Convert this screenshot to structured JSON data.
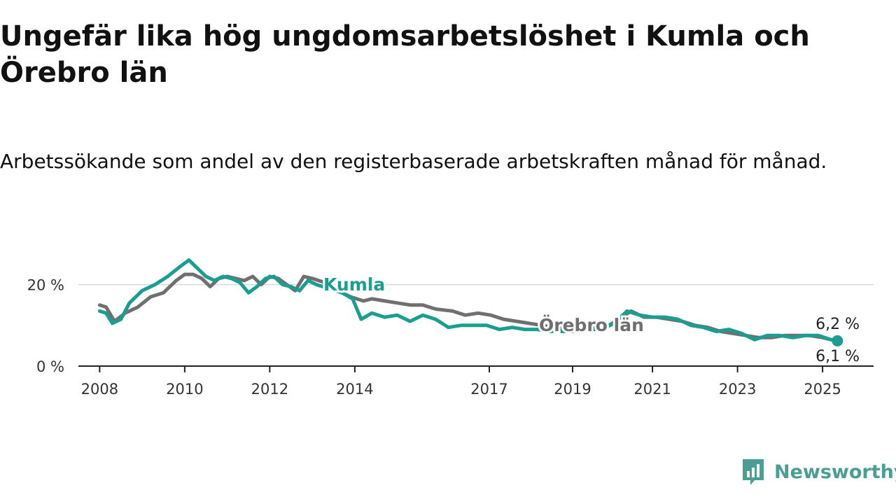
{
  "title": "Ungefär lika hög ungdomsarbetslöshet i Kumla och Örebro län",
  "subtitle": "Arbetssökande som andel av den registerbaserade arbetskraften månad för månad.",
  "brand": {
    "name": "Newsworthy",
    "icon": "bar-chart-speech-icon",
    "color": "#4a9e94"
  },
  "chart_data": {
    "type": "line",
    "xlim": [
      2007.5,
      2026.2
    ],
    "ylim": [
      0,
      28
    ],
    "x_ticks": [
      2008,
      2010,
      2012,
      2014,
      2017,
      2019,
      2021,
      2023,
      2025
    ],
    "y_ticks": [
      {
        "value": 0,
        "label": "0 %"
      },
      {
        "value": 20,
        "label": "20 %"
      }
    ],
    "grid": true,
    "series": [
      {
        "name": "Örebro län",
        "color": "#707070",
        "end_label": "6,1 %",
        "points": [
          [
            2008.0,
            15.0
          ],
          [
            2008.15,
            14.5
          ],
          [
            2008.35,
            11.0
          ],
          [
            2008.6,
            13.0
          ],
          [
            2008.9,
            14.5
          ],
          [
            2009.2,
            17.0
          ],
          [
            2009.5,
            18.0
          ],
          [
            2009.8,
            21.0
          ],
          [
            2010.0,
            22.5
          ],
          [
            2010.2,
            22.5
          ],
          [
            2010.4,
            21.5
          ],
          [
            2010.6,
            19.5
          ],
          [
            2010.8,
            21.5
          ],
          [
            2011.0,
            22.0
          ],
          [
            2011.2,
            21.5
          ],
          [
            2011.4,
            21.0
          ],
          [
            2011.6,
            22.0
          ],
          [
            2011.8,
            20.0
          ],
          [
            2012.0,
            22.0
          ],
          [
            2012.2,
            21.5
          ],
          [
            2012.4,
            20.0
          ],
          [
            2012.6,
            18.5
          ],
          [
            2012.8,
            22.0
          ],
          [
            2013.0,
            21.5
          ],
          [
            2013.3,
            20.5
          ],
          [
            2013.6,
            18.5
          ],
          [
            2013.9,
            17.0
          ],
          [
            2014.2,
            16.0
          ],
          [
            2014.4,
            16.5
          ],
          [
            2014.7,
            16.0
          ],
          [
            2015.0,
            15.5
          ],
          [
            2015.3,
            15.0
          ],
          [
            2015.6,
            15.0
          ],
          [
            2015.9,
            14.0
          ],
          [
            2016.3,
            13.5
          ],
          [
            2016.6,
            12.5
          ],
          [
            2016.9,
            13.0
          ],
          [
            2017.2,
            12.5
          ],
          [
            2017.5,
            11.5
          ],
          [
            2017.8,
            11.0
          ],
          [
            2018.1,
            10.5
          ],
          [
            2018.4,
            10.0
          ],
          [
            2018.7,
            9.5
          ],
          [
            2019.0,
            9.0
          ],
          [
            2019.3,
            9.5
          ],
          [
            2019.6,
            9.5
          ],
          [
            2019.9,
            9.5
          ],
          [
            2020.2,
            11.5
          ],
          [
            2020.5,
            13.5
          ],
          [
            2020.8,
            12.0
          ],
          [
            2021.1,
            12.0
          ],
          [
            2021.4,
            11.5
          ],
          [
            2021.7,
            11.0
          ],
          [
            2022.0,
            10.0
          ],
          [
            2022.3,
            9.5
          ],
          [
            2022.6,
            8.5
          ],
          [
            2022.9,
            8.0
          ],
          [
            2023.2,
            7.5
          ],
          [
            2023.5,
            7.0
          ],
          [
            2023.8,
            7.0
          ],
          [
            2024.1,
            7.5
          ],
          [
            2024.4,
            7.5
          ],
          [
            2024.7,
            7.5
          ],
          [
            2025.0,
            7.0
          ],
          [
            2025.2,
            6.5
          ],
          [
            2025.35,
            6.1
          ]
        ]
      },
      {
        "name": "Kumla",
        "color": "#1a9e8f",
        "end_label": "6,2 %",
        "points": [
          [
            2008.0,
            13.5
          ],
          [
            2008.15,
            13.0
          ],
          [
            2008.3,
            10.5
          ],
          [
            2008.5,
            11.5
          ],
          [
            2008.7,
            15.5
          ],
          [
            2009.0,
            18.5
          ],
          [
            2009.3,
            20.0
          ],
          [
            2009.6,
            22.0
          ],
          [
            2009.9,
            24.5
          ],
          [
            2010.1,
            26.0
          ],
          [
            2010.3,
            24.0
          ],
          [
            2010.5,
            22.0
          ],
          [
            2010.7,
            21.0
          ],
          [
            2010.9,
            22.0
          ],
          [
            2011.1,
            21.5
          ],
          [
            2011.3,
            20.5
          ],
          [
            2011.5,
            18.0
          ],
          [
            2011.7,
            19.5
          ],
          [
            2011.9,
            21.5
          ],
          [
            2012.1,
            22.0
          ],
          [
            2012.3,
            20.0
          ],
          [
            2012.5,
            19.5
          ],
          [
            2012.7,
            18.5
          ],
          [
            2012.9,
            21.0
          ],
          [
            2013.1,
            20.0
          ],
          [
            2013.4,
            19.0
          ],
          [
            2013.7,
            18.0
          ],
          [
            2013.95,
            16.5
          ],
          [
            2014.15,
            11.5
          ],
          [
            2014.4,
            13.0
          ],
          [
            2014.7,
            12.0
          ],
          [
            2015.0,
            12.5
          ],
          [
            2015.3,
            11.0
          ],
          [
            2015.6,
            12.5
          ],
          [
            2015.9,
            11.5
          ],
          [
            2016.2,
            9.5
          ],
          [
            2016.5,
            10.0
          ],
          [
            2016.8,
            10.0
          ],
          [
            2017.1,
            10.0
          ],
          [
            2017.4,
            9.0
          ],
          [
            2017.7,
            9.5
          ],
          [
            2018.0,
            9.0
          ],
          [
            2018.3,
            9.0
          ],
          [
            2018.6,
            8.5
          ],
          [
            2018.9,
            8.5
          ],
          [
            2019.2,
            8.5
          ],
          [
            2019.5,
            9.0
          ],
          [
            2019.8,
            9.0
          ],
          [
            2020.1,
            10.5
          ],
          [
            2020.4,
            13.5
          ],
          [
            2020.7,
            12.5
          ],
          [
            2021.0,
            12.0
          ],
          [
            2021.3,
            12.0
          ],
          [
            2021.6,
            11.5
          ],
          [
            2021.9,
            10.0
          ],
          [
            2022.2,
            9.5
          ],
          [
            2022.5,
            8.5
          ],
          [
            2022.8,
            9.0
          ],
          [
            2023.1,
            8.0
          ],
          [
            2023.4,
            6.5
          ],
          [
            2023.7,
            7.5
          ],
          [
            2024.0,
            7.5
          ],
          [
            2024.3,
            7.0
          ],
          [
            2024.6,
            7.5
          ],
          [
            2024.9,
            7.5
          ],
          [
            2025.2,
            6.5
          ],
          [
            2025.35,
            6.2
          ]
        ]
      }
    ]
  }
}
